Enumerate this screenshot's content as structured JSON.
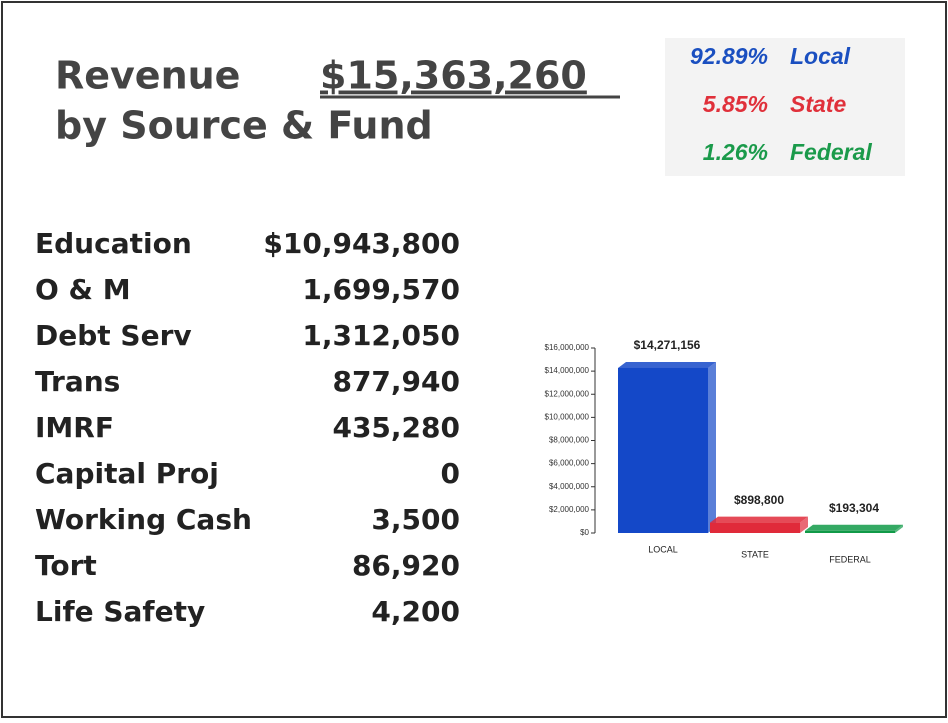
{
  "header": {
    "title_line1": "Revenue",
    "total": "$15,363,260",
    "title_line2": "by Source & Fund"
  },
  "sources": [
    {
      "percent": "92.89%",
      "name": "Local"
    },
    {
      "percent": "5.85%",
      "name": "State"
    },
    {
      "percent": "1.26%",
      "name": "Federal"
    }
  ],
  "funds": [
    [
      "Education",
      "$10,943,800"
    ],
    [
      "O & M",
      "1,699,570"
    ],
    [
      "Debt Serv",
      "1,312,050"
    ],
    [
      "Trans",
      "877,940"
    ],
    [
      "IMRF",
      "435,280"
    ],
    [
      "Capital Proj",
      "0"
    ],
    [
      "Working Cash",
      "3,500"
    ],
    [
      "Tort",
      "86,920"
    ],
    [
      "Life Safety",
      "4,200"
    ]
  ],
  "chart_data": {
    "type": "bar",
    "categories": [
      "LOCAL",
      "STATE",
      "FEDERAL"
    ],
    "values": [
      14271156,
      898800,
      193304
    ],
    "value_labels": [
      "$14,271,156",
      "$898,800",
      "$193,304"
    ],
    "colors": [
      "#1448c8",
      "#e02a3a",
      "#119a48"
    ],
    "ylim": [
      0,
      16000000
    ],
    "yticks": [
      {
        "value": 0,
        "label": "$0"
      },
      {
        "value": 2000000,
        "label": "$2,000,000"
      },
      {
        "value": 4000000,
        "label": "$4,000,000"
      },
      {
        "value": 6000000,
        "label": "$6,000,000"
      },
      {
        "value": 8000000,
        "label": "$8,000,000"
      },
      {
        "value": 10000000,
        "label": "$10,000,000"
      },
      {
        "value": 12000000,
        "label": "$12,000,000"
      },
      {
        "value": 14000000,
        "label": "$14,000,000"
      },
      {
        "value": 16000000,
        "label": "$16,000,000"
      }
    ]
  }
}
